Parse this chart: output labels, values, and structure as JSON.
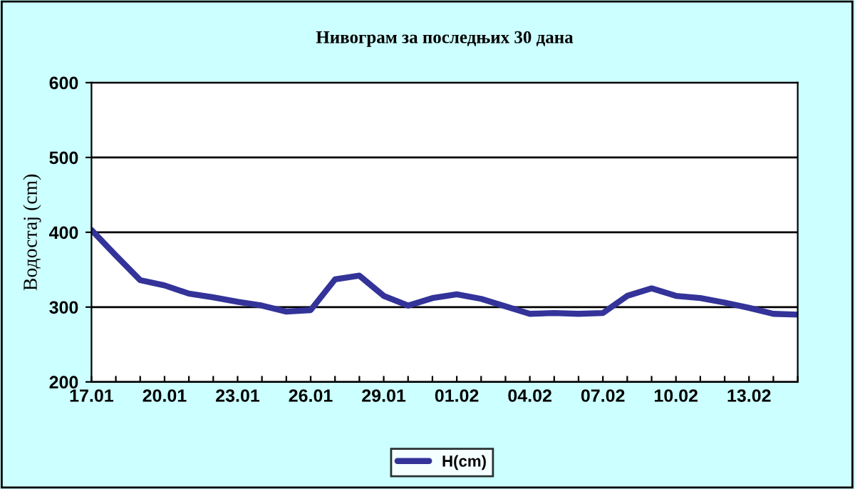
{
  "chart_data": {
    "type": "line",
    "title": "Нивограм за последњих 30 дана",
    "ylabel": "Водостај (cm)",
    "categories": [
      "17.01",
      null,
      null,
      "20.01",
      null,
      null,
      "23.01",
      null,
      null,
      "26.01",
      null,
      null,
      "29.01",
      null,
      null,
      "01.02",
      null,
      null,
      "04.02",
      null,
      null,
      "07.02",
      null,
      null,
      "10.02",
      null,
      null,
      "13.02",
      null,
      null
    ],
    "series": [
      {
        "name": "H(cm)",
        "color": "#333399",
        "values": [
          403,
          369,
          336,
          329,
          318,
          313,
          307,
          302,
          294,
          296,
          337,
          342,
          315,
          302,
          312,
          317,
          311,
          301,
          291,
          292,
          291,
          292,
          315,
          325,
          315,
          312,
          306,
          299,
          291,
          290
        ]
      }
    ],
    "ylim": [
      200,
      600
    ],
    "yticks": [
      200,
      300,
      400,
      500,
      600
    ],
    "grid": "y",
    "legend": "bottom",
    "marker": "none",
    "line_style": "solid"
  }
}
